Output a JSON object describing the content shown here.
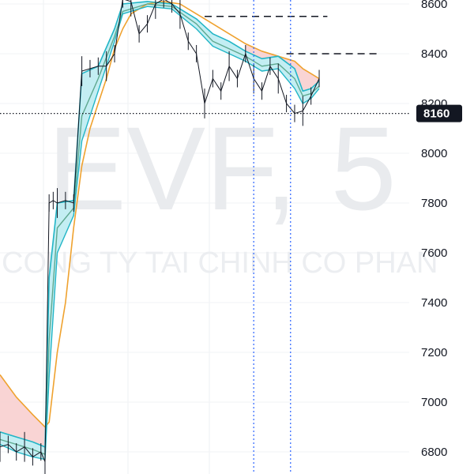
{
  "chart_data": {
    "type": "line",
    "symbol": "EVF",
    "interval": "5",
    "watermark_ticker": "EVF, 5",
    "watermark_name": "CONG TY TAI CHINH CO PHAN",
    "y_axis": {
      "ticks": [
        8600,
        8400,
        8200,
        8000,
        7800,
        7600,
        7400,
        7200,
        7000,
        6800
      ],
      "ylim": [
        6750,
        8620
      ]
    },
    "x_range": [
      0,
      100
    ],
    "current_price": 8160,
    "price_levels": [
      {
        "value": 8550,
        "x_start": 50,
        "x_end": 80
      },
      {
        "value": 8400,
        "x_start": 70,
        "x_end": 93
      }
    ],
    "vertical_markers": [
      62,
      71
    ],
    "grid": true,
    "colors": {
      "price": "#131722",
      "band_upper": "#22b5c6",
      "band_fill_up": "#b8ebf1",
      "band_fill_down": "#f8cfcf",
      "band_mid": "#5ea88f",
      "ma_slow": "#efa22f",
      "marker_line": "#2962ff",
      "tag_bg": "#131722"
    },
    "series": [
      {
        "key": "price",
        "type": "candles",
        "x": [
          0,
          2,
          4,
          6,
          8,
          10,
          11,
          12,
          13,
          14,
          16,
          18,
          20,
          22,
          24,
          26,
          28,
          30,
          32,
          34,
          36,
          38,
          40,
          42,
          44,
          46,
          48,
          50,
          52,
          54,
          56,
          58,
          60,
          62,
          64,
          66,
          68,
          70,
          72,
          74,
          76,
          78
        ],
        "values": [
          6820,
          6830,
          6800,
          6820,
          6780,
          6800,
          6760,
          7800,
          7810,
          7800,
          7810,
          7800,
          8330,
          8340,
          8350,
          8350,
          8400,
          8620,
          8610,
          8480,
          8520,
          8600,
          8620,
          8600,
          8560,
          8450,
          8400,
          8200,
          8300,
          8250,
          8350,
          8300,
          8400,
          8300,
          8250,
          8350,
          8300,
          8200,
          8160,
          8170,
          8230,
          8300
        ]
      },
      {
        "key": "band_upper",
        "x": [
          0,
          4,
          8,
          11,
          12,
          14,
          18,
          20,
          24,
          28,
          30,
          36,
          42,
          48,
          52,
          56,
          60,
          64,
          68,
          72,
          74,
          76,
          78
        ],
        "values": [
          6880,
          6860,
          6840,
          6820,
          7500,
          7800,
          7810,
          8320,
          8350,
          8500,
          8600,
          8610,
          8600,
          8540,
          8480,
          8450,
          8410,
          8380,
          8390,
          8340,
          8250,
          8260,
          8290
        ]
      },
      {
        "key": "band_lower",
        "x": [
          0,
          4,
          8,
          11,
          12,
          14,
          18,
          20,
          24,
          28,
          30,
          36,
          42,
          48,
          52,
          56,
          60,
          64,
          68,
          72,
          74,
          76,
          78
        ],
        "values": [
          6830,
          6800,
          6780,
          6770,
          7100,
          7600,
          7750,
          8050,
          8250,
          8450,
          8560,
          8590,
          8580,
          8500,
          8430,
          8400,
          8370,
          8330,
          8340,
          8260,
          8200,
          8220,
          8260
        ]
      },
      {
        "key": "band_mid",
        "x": [
          0,
          4,
          8,
          11,
          12,
          14,
          18,
          20,
          24,
          28,
          30,
          36,
          42,
          48,
          52,
          56,
          60,
          64,
          68,
          72,
          74,
          76,
          78
        ],
        "values": [
          6850,
          6830,
          6810,
          6790,
          7250,
          7700,
          7780,
          8150,
          8300,
          8470,
          8570,
          8600,
          8590,
          8520,
          8450,
          8420,
          8390,
          8350,
          8360,
          8300,
          8230,
          8240,
          8270
        ]
      },
      {
        "key": "ma_slow",
        "x": [
          0,
          4,
          8,
          11,
          12,
          14,
          16,
          18,
          20,
          22,
          24,
          26,
          28,
          30,
          32,
          36,
          40,
          44,
          48,
          52,
          56,
          60,
          64,
          68,
          72,
          74,
          76,
          78
        ],
        "values": [
          7110,
          7020,
          6950,
          6900,
          6920,
          7200,
          7400,
          7700,
          7950,
          8100,
          8200,
          8300,
          8420,
          8500,
          8560,
          8600,
          8610,
          8600,
          8560,
          8520,
          8480,
          8440,
          8410,
          8390,
          8370,
          8340,
          8320,
          8300
        ]
      }
    ]
  }
}
